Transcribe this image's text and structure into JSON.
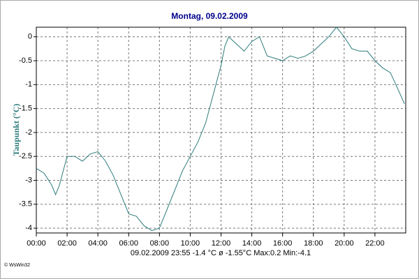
{
  "chart_data": {
    "type": "line",
    "title": "Montag, 09.02.2009",
    "y_label": "Taupunkt  (°C)",
    "footer": "09.02.2009  23:55   -1.4 °C   ø -1.55°C  Max:0.2  Min:-4.1",
    "copyright": "© WsWin32",
    "x": [
      0,
      0.5,
      1,
      1.25,
      1.5,
      1.75,
      2,
      2.5,
      3,
      3.5,
      4,
      4.5,
      5,
      5.5,
      6,
      6.5,
      7,
      7.5,
      8,
      8.5,
      9,
      9.5,
      10,
      10.5,
      11,
      11.5,
      12,
      12.25,
      12.5,
      13,
      13.5,
      14,
      14.5,
      15,
      15.5,
      16,
      16.5,
      17,
      17.5,
      18,
      18.5,
      19,
      19.5,
      20,
      20.5,
      21,
      21.5,
      22,
      22.5,
      23,
      23.5,
      23.917
    ],
    "series": [
      {
        "name": "Taupunkt",
        "color": "#2e7b7b",
        "values": [
          -2.75,
          -2.85,
          -3.1,
          -3.3,
          -3.1,
          -2.8,
          -2.5,
          -2.5,
          -2.6,
          -2.45,
          -2.4,
          -2.6,
          -2.9,
          -3.3,
          -3.7,
          -3.75,
          -3.95,
          -4.05,
          -4.0,
          -3.6,
          -3.2,
          -2.8,
          -2.5,
          -2.2,
          -1.8,
          -1.2,
          -0.6,
          -0.2,
          0,
          -0.15,
          -0.3,
          -0.1,
          0,
          -0.4,
          -0.45,
          -0.5,
          -0.4,
          -0.45,
          -0.4,
          -0.3,
          -0.15,
          0,
          0.2,
          0,
          -0.25,
          -0.3,
          -0.3,
          -0.5,
          -0.65,
          -0.75,
          -1.1,
          -1.4
        ]
      }
    ],
    "xlim": [
      0,
      24
    ],
    "xticks": [
      {
        "value": 0,
        "label": "00:00"
      },
      {
        "value": 2,
        "label": "02:00"
      },
      {
        "value": 4,
        "label": "04:00"
      },
      {
        "value": 6,
        "label": "06:00"
      },
      {
        "value": 8,
        "label": "08:00"
      },
      {
        "value": 10,
        "label": "10:00"
      },
      {
        "value": 12,
        "label": "12:00"
      },
      {
        "value": 14,
        "label": "14:00"
      },
      {
        "value": 16,
        "label": "16:00"
      },
      {
        "value": 18,
        "label": "18:00"
      },
      {
        "value": 20,
        "label": "20:00"
      },
      {
        "value": 22,
        "label": "22:00"
      }
    ],
    "ylim": [
      -4.1,
      0.2
    ],
    "yticks": [
      0,
      -0.5,
      -1,
      -1.5,
      -2,
      -2.5,
      -3,
      -3.5,
      -4
    ],
    "grid": true
  }
}
